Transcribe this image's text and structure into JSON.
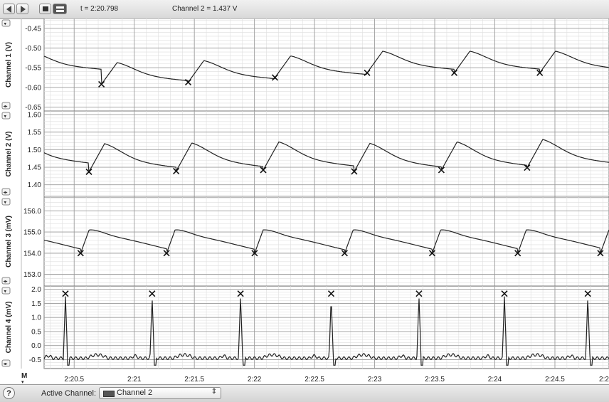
{
  "toolbar": {
    "time_label": "t = 2:20.798",
    "readout_label": "Channel 2 = 1.437 V"
  },
  "channels": [
    {
      "label": "Channel 1 (V)",
      "ticks": [
        "-0.45",
        "-0.50",
        "-0.55",
        "-0.60",
        "-0.65"
      ]
    },
    {
      "label": "Channel 2 (V)",
      "ticks": [
        "1.60",
        "1.55",
        "1.50",
        "1.45",
        "1.40"
      ]
    },
    {
      "label": "Channel 3 (mV)",
      "ticks": [
        "156.0",
        "155.0",
        "154.0",
        "153.0"
      ]
    },
    {
      "label": "Channel 4 (mV)",
      "ticks": [
        "2.0",
        "1.5",
        "1.0",
        "0.5",
        "0.0",
        "-0.5"
      ]
    }
  ],
  "time_ticks": [
    "2:20.5",
    "2:21",
    "2:21.5",
    "2:22",
    "2:22.5",
    "2:23",
    "2:23.5",
    "2:24",
    "2:24.5",
    "2:2"
  ],
  "status": {
    "help_label": "?",
    "active_channel_label": "Active Channel:",
    "active_channel_value": "Channel 2"
  },
  "chart_data": [
    {
      "type": "line",
      "series": [
        {
          "name": "Channel 1",
          "values": [
            -0.592,
            -0.587,
            -0.575,
            -0.563,
            -0.563,
            -0.563
          ]
        }
      ],
      "x": [
        142.6,
        264.5,
        386.5,
        516.0,
        638.5,
        758.7
      ],
      "y_range": [
        -0.65,
        -0.45
      ],
      "marker_note": "x markers at troughs"
    },
    {
      "type": "line",
      "series": [
        {
          "name": "Channel 2",
          "values": [
            1.437,
            1.439,
            1.442,
            1.438,
            1.442,
            1.449
          ]
        }
      ],
      "x": [
        125.0,
        247.6,
        370.0,
        497.9,
        620.4,
        740.9
      ],
      "y_range": [
        1.4,
        1.6
      ]
    },
    {
      "type": "line",
      "series": [
        {
          "name": "Channel 3",
          "values": [
            154.0,
            154.0,
            154.0,
            154.0,
            154.0,
            154.0,
            154.0
          ]
        }
      ],
      "x": [
        113.3,
        234.1,
        357.9,
        484.4,
        607.4,
        727.7,
        843.9
      ],
      "y_range": [
        153.0,
        156.0
      ]
    },
    {
      "type": "line",
      "series": [
        {
          "name": "Channel 4",
          "values": [
            1.85,
            1.85,
            1.85,
            1.85,
            1.85,
            1.85,
            1.85
          ]
        }
      ],
      "x": [
        92.0,
        213.8,
        338.1,
        465.5,
        588.9,
        709.0,
        826.2
      ],
      "y_range": [
        -0.5,
        2.0
      ]
    }
  ]
}
